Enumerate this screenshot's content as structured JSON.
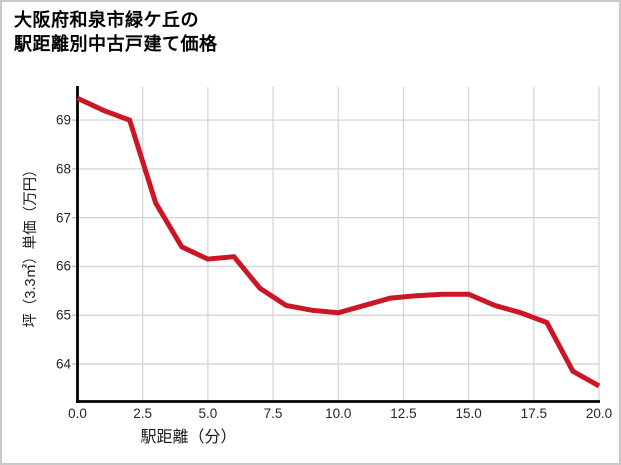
{
  "title": {
    "line1": "大阪府和泉市緑ケ丘の",
    "line2": "駅距離別中古戸建て価格"
  },
  "chart_data": {
    "type": "line",
    "title": "大阪府和泉市緑ケ丘の駅距離別中古戸建て価格",
    "xlabel": "駅距離（分）",
    "ylabel": "坪（3.3㎡）単価（万円）",
    "x": [
      0,
      1,
      2,
      3,
      4,
      5,
      6,
      7,
      8,
      9,
      10,
      11,
      12,
      13,
      14,
      15,
      16,
      17,
      18,
      19,
      20
    ],
    "y": [
      69.45,
      69.2,
      69.0,
      67.3,
      66.4,
      66.15,
      66.2,
      65.55,
      65.2,
      65.1,
      65.05,
      65.2,
      65.35,
      65.4,
      65.43,
      65.43,
      65.2,
      65.05,
      64.85,
      63.85,
      63.55
    ],
    "xlim": [
      0,
      20
    ],
    "ylim": [
      63.23,
      69.68
    ],
    "xticks": [
      0,
      2.5,
      5,
      7.5,
      10,
      12.5,
      15,
      17.5,
      20
    ],
    "xtick_labels": [
      "0.0",
      "2.5",
      "5.0",
      "7.5",
      "10.0",
      "12.5",
      "15.0",
      "17.5",
      "20.0"
    ],
    "yticks": [
      64,
      65,
      66,
      67,
      68,
      69
    ],
    "ytick_labels": [
      "64",
      "65",
      "66",
      "67",
      "68",
      "69"
    ],
    "grid": true,
    "legend_position": "none",
    "line_color": "#cc1626",
    "line_width": 5,
    "grid_color": "#d6d6d6",
    "axis_color": "#000000",
    "tick_color": "#bdbdbd"
  }
}
